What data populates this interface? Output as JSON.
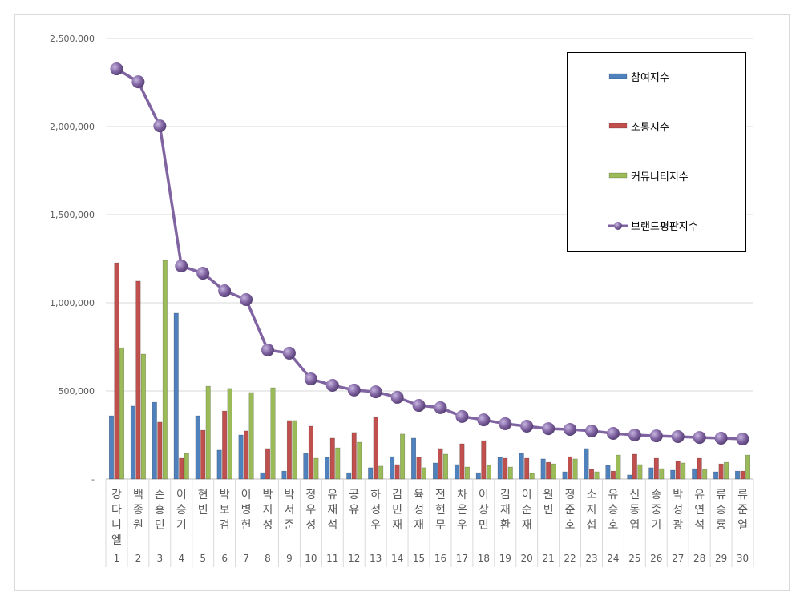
{
  "chart_data": {
    "type": "bar",
    "title": "",
    "xlabel": "",
    "ylabel": "",
    "ylim": [
      0,
      2500000
    ],
    "yticks": [
      "-",
      "500,000",
      "1,000,000",
      "1,500,000",
      "2,000,000",
      "2,500,000"
    ],
    "grid": true,
    "legend_position": "top-right",
    "categories": [
      "강다니엘",
      "백종원",
      "손흥민",
      "이승기",
      "현빈",
      "박보검",
      "이병헌",
      "박지성",
      "박서준",
      "정우성",
      "유재석",
      "공유",
      "하정우",
      "김민재",
      "육성재",
      "전현무",
      "차은우",
      "이상민",
      "김재환",
      "이순재",
      "원빈",
      "정준호",
      "소지섭",
      "유승호",
      "신동엽",
      "송중기",
      "박성광",
      "유연석",
      "류승룡",
      "류준열"
    ],
    "ranks": [
      "1",
      "2",
      "3",
      "4",
      "5",
      "6",
      "7",
      "8",
      "9",
      "10",
      "11",
      "12",
      "13",
      "14",
      "15",
      "16",
      "17",
      "18",
      "19",
      "20",
      "21",
      "22",
      "23",
      "24",
      "25",
      "26",
      "27",
      "28",
      "29",
      "30"
    ],
    "series": [
      {
        "name": "참여지수",
        "type": "bar",
        "color": "#4f81bd",
        "values": [
          359000,
          414000,
          436000,
          941000,
          359000,
          164000,
          250000,
          36000,
          45000,
          145000,
          123000,
          36000,
          64000,
          127000,
          232000,
          91000,
          82000,
          36000,
          123000,
          145000,
          114000,
          41000,
          173000,
          77000,
          23000,
          64000,
          50000,
          59000,
          41000,
          45000
        ]
      },
      {
        "name": "소통지수",
        "type": "bar",
        "color": "#c0504d",
        "values": [
          1227000,
          1123000,
          323000,
          118000,
          277000,
          386000,
          273000,
          173000,
          332000,
          300000,
          232000,
          264000,
          350000,
          82000,
          123000,
          173000,
          200000,
          218000,
          118000,
          118000,
          95000,
          127000,
          55000,
          45000,
          141000,
          118000,
          100000,
          118000,
          86000,
          45000
        ]
      },
      {
        "name": "커뮤니티지수",
        "type": "bar",
        "color": "#9bbb59",
        "values": [
          745000,
          709000,
          1241000,
          145000,
          527000,
          514000,
          491000,
          518000,
          332000,
          118000,
          177000,
          209000,
          73000,
          255000,
          64000,
          141000,
          68000,
          77000,
          68000,
          32000,
          86000,
          114000,
          41000,
          136000,
          82000,
          59000,
          91000,
          55000,
          95000,
          136000
        ]
      },
      {
        "name": "브랜드평판지수",
        "type": "line",
        "color": "#8064a2",
        "values": [
          2327000,
          2254000,
          2004000,
          1209000,
          1168000,
          1068000,
          1018000,
          732000,
          714000,
          568000,
          532000,
          505000,
          495000,
          464000,
          418000,
          405000,
          355000,
          336000,
          314000,
          300000,
          286000,
          282000,
          273000,
          259000,
          250000,
          245000,
          241000,
          236000,
          232000,
          227000
        ]
      }
    ]
  }
}
